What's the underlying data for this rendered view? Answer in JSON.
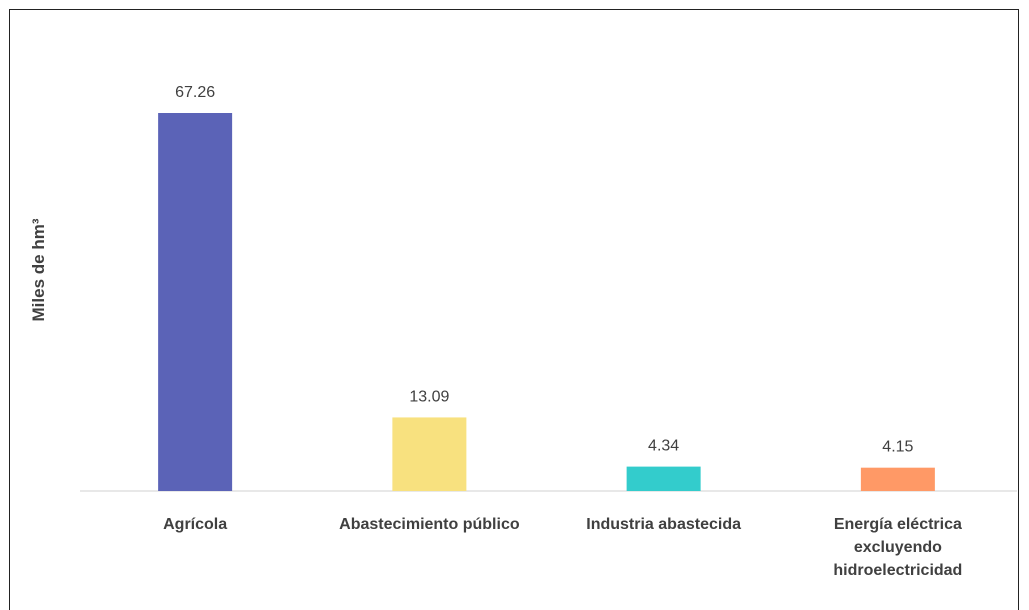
{
  "chart_data": {
    "type": "bar",
    "y_label": "Miles de hm³",
    "categories": [
      "Agrícola",
      "Abastecimiento público",
      "Industria abastecida",
      "Energía eléctrica excluyendo hidroelectricidad"
    ],
    "values": [
      67.26,
      13.09,
      4.34,
      4.15
    ],
    "colors": [
      "#5b63b7",
      "#f8e17f",
      "#33cccc",
      "#ff9966"
    ]
  }
}
